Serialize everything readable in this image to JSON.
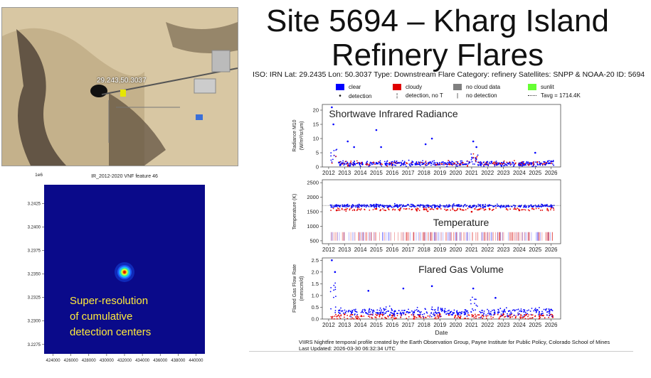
{
  "slide": {
    "title_line1": "Site 5694 – Kharg Island",
    "title_line2": "Refinery Flares",
    "meta": "ISO: IRN  Lat: 29.2435 Lon: 50.3037 Type: Downstream Flare Category: refinery Satellites: SNPP & NOAA-20 ID: 5694",
    "sat_coord_label": "29.243,50.3037"
  },
  "legend": {
    "clear": "clear",
    "detection": "detection",
    "cloudy": "cloudy",
    "detection_no_t": "detection, no T",
    "no_cloud_data": "no cloud data",
    "no_detection": "no detection",
    "sunlit": "sunlit",
    "tavg": "Tavg = 1714.4K",
    "colors": {
      "clear": "#0000ff",
      "cloudy": "#e00000",
      "no_cloud_data": "#808080",
      "sunlit": "#66ff33"
    }
  },
  "footer": {
    "line1": "VIIRS Nightfire temporal profile created by the Earth Observation Group, Payne Institute for Public Policy, Colorado School of Mines",
    "line2": "Last Updated: 2026-03-30 06:32:34 UTC"
  },
  "super_resolution": {
    "line1": "Super-resolution",
    "line2": "of cumulative",
    "line3": "detection centers"
  },
  "chart_data": [
    {
      "type": "heatmap",
      "title": "IR_2012-2020 VNF feature 46",
      "offset_label": "1e6",
      "xticks": [
        "424000",
        "426000",
        "428000",
        "430000",
        "432000",
        "434000",
        "436000",
        "438000",
        "440000"
      ],
      "yticks": [
        "3.2425",
        "3.2400",
        "3.2375",
        "3.2350",
        "3.2325",
        "3.2300",
        "3.2275"
      ],
      "xlim": [
        423000,
        441000
      ],
      "ylim": [
        3.2265,
        3.2445
      ],
      "hotspot": {
        "x": 432000,
        "y": 3.2352
      }
    },
    {
      "type": "scatter",
      "title": "Shortwave Infrared Radiance",
      "ylabel": "Radiance M10\n(W/m²/sr/µm)",
      "ylim": [
        0,
        22
      ],
      "yticks": [
        "0",
        "5",
        "10",
        "15",
        "20"
      ],
      "xlim": [
        2011.6,
        2026.6
      ],
      "series": [
        {
          "name": "clear",
          "values": [
            [
              2012.2,
              21
            ],
            [
              2012.3,
              15
            ],
            [
              2013.2,
              9
            ],
            [
              2013.6,
              7
            ],
            [
              2015.0,
              13
            ],
            [
              2015.3,
              7
            ],
            [
              2018.1,
              8
            ],
            [
              2018.5,
              10
            ],
            [
              2021.1,
              9
            ],
            [
              2021.3,
              7
            ],
            [
              2025.0,
              5
            ],
            [
              2026.0,
              2
            ]
          ]
        }
      ]
    },
    {
      "type": "scatter",
      "title": "Temperature",
      "ylabel": "Temperature (K)",
      "ylim": [
        400,
        2600
      ],
      "yticks": [
        "500",
        "1000",
        "1500",
        "2000",
        "2500"
      ],
      "xlim": [
        2011.6,
        2026.6
      ],
      "series": [
        {
          "name": "clear",
          "values": [
            [
              2012.5,
              1700
            ],
            [
              2015.0,
              1750
            ],
            [
              2018.0,
              1700
            ],
            [
              2021.0,
              1650
            ],
            [
              2024.0,
              1700
            ],
            [
              2026.0,
              1680
            ]
          ]
        },
        {
          "name": "cloudy",
          "values": [
            [
              2012.5,
              1550
            ],
            [
              2015.0,
              1600
            ],
            [
              2018.0,
              1580
            ],
            [
              2021.0,
              1500
            ],
            [
              2024.0,
              1550
            ]
          ]
        }
      ]
    },
    {
      "type": "scatter",
      "title": "Flared Gas Volume",
      "ylabel": "Flared Gas Flow Rate\n(mmscm/d)",
      "xlabel": "Date",
      "ylim": [
        0,
        2.6
      ],
      "yticks": [
        "0.0",
        "0.5",
        "1.0",
        "1.5",
        "2.0",
        "2.5"
      ],
      "xlim": [
        2011.6,
        2026.6
      ],
      "xticks": [
        "2012",
        "2013",
        "2014",
        "2015",
        "2016",
        "2017",
        "2018",
        "2019",
        "2020",
        "2021",
        "2022",
        "2023",
        "2024",
        "2025",
        "2026"
      ],
      "series": [
        {
          "name": "clear",
          "values": [
            [
              2012.2,
              2.5
            ],
            [
              2012.4,
              2.0
            ],
            [
              2014.5,
              1.2
            ],
            [
              2016.7,
              1.3
            ],
            [
              2018.5,
              1.4
            ],
            [
              2021.1,
              1.3
            ],
            [
              2022.5,
              0.9
            ],
            [
              2026.0,
              0.4
            ]
          ]
        },
        {
          "name": "cloudy",
          "values": [
            [
              2013.0,
              0.2
            ],
            [
              2016.0,
              0.15
            ],
            [
              2019.0,
              0.2
            ],
            [
              2023.0,
              0.2
            ],
            [
              2025.5,
              0.15
            ]
          ]
        }
      ]
    }
  ]
}
